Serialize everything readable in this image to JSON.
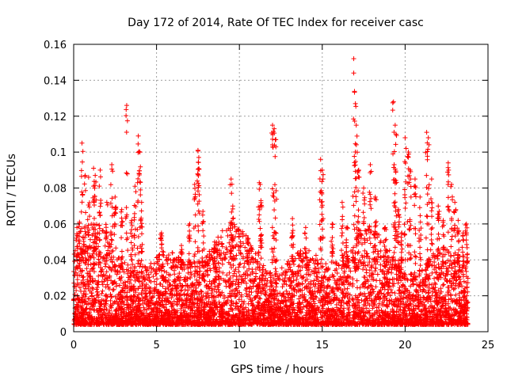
{
  "chart_data": {
    "type": "scatter",
    "title": "Day 172 of 2014, Rate Of TEC Index for receiver casc",
    "xlabel": "GPS time / hours",
    "ylabel": "ROTI / TECUs",
    "xlim": [
      0,
      25
    ],
    "ylim": [
      0,
      0.16
    ],
    "x_ticks": [
      0,
      5,
      10,
      15,
      20,
      25
    ],
    "x_tick_labels": [
      "0",
      "5",
      "10",
      "15",
      "20",
      "25"
    ],
    "y_ticks": [
      0,
      0.02,
      0.04,
      0.06,
      0.08,
      0.1,
      0.12,
      0.14,
      0.16
    ],
    "y_tick_labels": [
      "0",
      "0.02",
      "0.04",
      "0.06",
      "0.08",
      "0.1",
      "0.12",
      "0.14",
      "0.16"
    ],
    "grid": true,
    "marker": "+",
    "marker_color": "#ff0000",
    "series": [
      {
        "name": "ROTI",
        "points": [
          [
            0.2,
            0.058
          ],
          [
            0.35,
            0.061
          ],
          [
            0.5,
            0.105
          ],
          [
            0.7,
            0.087
          ],
          [
            0.9,
            0.086
          ],
          [
            1.2,
            0.091
          ],
          [
            1.3,
            0.087
          ],
          [
            1.6,
            0.09
          ],
          [
            2.0,
            0.072
          ],
          [
            2.3,
            0.093
          ],
          [
            2.5,
            0.075
          ],
          [
            2.9,
            0.068
          ],
          [
            3.2,
            0.126
          ],
          [
            3.5,
            0.062
          ],
          [
            3.7,
            0.081
          ],
          [
            3.9,
            0.109
          ],
          [
            4.0,
            0.1
          ],
          [
            4.1,
            0.072
          ],
          [
            5.3,
            0.055
          ],
          [
            6.5,
            0.048
          ],
          [
            7.0,
            0.06
          ],
          [
            7.3,
            0.082
          ],
          [
            7.5,
            0.101
          ],
          [
            7.55,
            0.097
          ],
          [
            7.8,
            0.067
          ],
          [
            8.5,
            0.05
          ],
          [
            9.5,
            0.085
          ],
          [
            9.6,
            0.07
          ],
          [
            10.5,
            0.052
          ],
          [
            11.2,
            0.083
          ],
          [
            11.3,
            0.073
          ],
          [
            12.0,
            0.115
          ],
          [
            12.1,
            0.113
          ],
          [
            12.2,
            0.107
          ],
          [
            13.2,
            0.063
          ],
          [
            14.0,
            0.058
          ],
          [
            14.9,
            0.096
          ],
          [
            15.0,
            0.09
          ],
          [
            15.6,
            0.06
          ],
          [
            16.2,
            0.072
          ],
          [
            16.5,
            0.058
          ],
          [
            16.9,
            0.152
          ],
          [
            17.0,
            0.127
          ],
          [
            17.05,
            0.115
          ],
          [
            17.2,
            0.09
          ],
          [
            17.5,
            0.08
          ],
          [
            17.9,
            0.093
          ],
          [
            18.2,
            0.075
          ],
          [
            18.8,
            0.058
          ],
          [
            19.3,
            0.128
          ],
          [
            19.4,
            0.115
          ],
          [
            19.45,
            0.11
          ],
          [
            19.6,
            0.068
          ],
          [
            19.8,
            0.055
          ],
          [
            20.0,
            0.108
          ],
          [
            20.2,
            0.1
          ],
          [
            20.3,
            0.09
          ],
          [
            20.6,
            0.085
          ],
          [
            20.9,
            0.075
          ],
          [
            21.3,
            0.111
          ],
          [
            21.4,
            0.108
          ],
          [
            21.6,
            0.085
          ],
          [
            22.0,
            0.07
          ],
          [
            22.3,
            0.062
          ],
          [
            22.6,
            0.094
          ],
          [
            22.8,
            0.082
          ],
          [
            23.0,
            0.072
          ],
          [
            23.2,
            0.062
          ],
          [
            23.5,
            0.055
          ],
          [
            23.7,
            0.06
          ]
        ],
        "baseline_band": {
          "from_x": 0.0,
          "to_x": 23.8,
          "min_y": 0.004,
          "typical_max_y": 0.045,
          "estimated_count": 5500
        }
      }
    ]
  }
}
